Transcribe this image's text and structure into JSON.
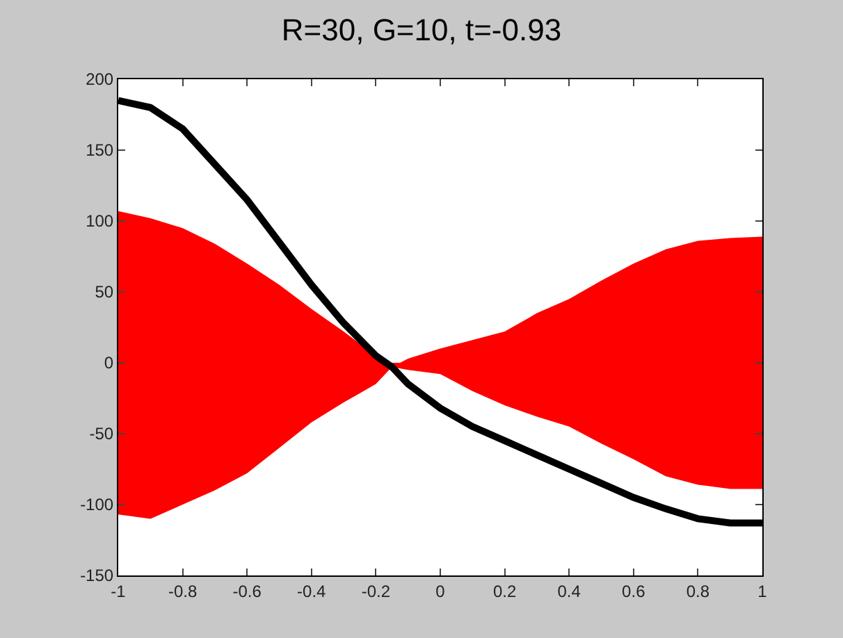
{
  "chart_data": {
    "type": "line",
    "title": "R=30, G=10, t=-0.93",
    "x": [
      -1,
      -0.9,
      -0.8,
      -0.7,
      -0.6,
      -0.5,
      -0.4,
      -0.3,
      -0.2,
      -0.15,
      -0.1,
      0,
      0.1,
      0.2,
      0.3,
      0.4,
      0.5,
      0.6,
      0.7,
      0.8,
      0.9,
      1
    ],
    "series": [
      {
        "type": "area",
        "color": "#ff0000",
        "values": [
          107,
          102,
          95,
          84,
          70,
          55,
          38,
          22,
          5,
          -3,
          3,
          10,
          16,
          22,
          35,
          45,
          58,
          70,
          80,
          86,
          88,
          89
        ]
      },
      {
        "type": "area",
        "color": "#ff0000",
        "values": [
          -107,
          -110,
          -100,
          -90,
          -78,
          -60,
          -42,
          -28,
          -15,
          -3,
          -5,
          -8,
          -20,
          -30,
          -38,
          -45,
          -57,
          -68,
          -80,
          -86,
          -89,
          -89
        ]
      },
      {
        "type": "line",
        "color": "#000000",
        "values": [
          185,
          180,
          165,
          140,
          115,
          85,
          55,
          28,
          5,
          -3,
          -15,
          -32,
          -45,
          -55,
          -65,
          -75,
          -85,
          -95,
          -103,
          -110,
          -113,
          -113
        ]
      }
    ],
    "xlim": [
      -1,
      1
    ],
    "ylim": [
      -150,
      200
    ],
    "xticks": [
      -1,
      -0.8,
      -0.6,
      -0.4,
      -0.2,
      0,
      0.2,
      0.4,
      0.6,
      0.8,
      1
    ],
    "yticks": [
      -150,
      -100,
      -50,
      0,
      50,
      100,
      150,
      200
    ],
    "line_style": "solid",
    "marker": "none"
  }
}
